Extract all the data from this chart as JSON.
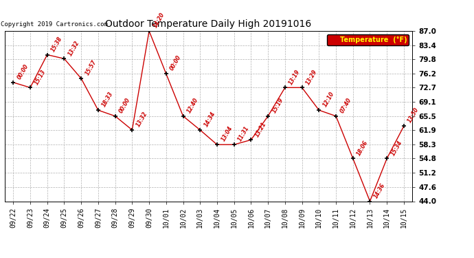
{
  "title": "Outdoor Temperature Daily High 20191016",
  "copyright": "Copyright 2019 Cartronics.com",
  "legend_label": "Temperature  (°F)",
  "dates": [
    "09/22",
    "09/23",
    "09/24",
    "09/25",
    "09/26",
    "09/27",
    "09/28",
    "09/29",
    "09/30",
    "10/01",
    "10/02",
    "10/03",
    "10/04",
    "10/05",
    "10/06",
    "10/07",
    "10/08",
    "10/09",
    "10/10",
    "10/11",
    "10/12",
    "10/13",
    "10/14",
    "10/15"
  ],
  "temps": [
    74.0,
    72.7,
    81.0,
    80.0,
    75.0,
    67.0,
    65.5,
    62.0,
    87.0,
    76.2,
    65.5,
    62.0,
    58.3,
    58.3,
    59.5,
    65.5,
    72.7,
    72.7,
    67.0,
    65.5,
    54.8,
    44.0,
    54.8,
    63.0
  ],
  "time_labels": [
    "00:00",
    "15:13",
    "15:38",
    "13:32",
    "15:57",
    "18:33",
    "00:00",
    "13:32",
    "14:20",
    "00:00",
    "12:40",
    "14:34",
    "13:04",
    "11:31",
    "13:21",
    "15:19",
    "13:19",
    "13:29",
    "12:10",
    "07:40",
    "18:06",
    "14:36",
    "15:34",
    "13:50"
  ],
  "yticks": [
    44.0,
    47.6,
    51.2,
    54.8,
    58.3,
    61.9,
    65.5,
    69.1,
    72.7,
    76.2,
    79.8,
    83.4,
    87.0
  ],
  "ylim": [
    44.0,
    87.0
  ],
  "line_color": "#cc0000",
  "marker_color": "#000000",
  "bg_color": "#ffffff",
  "grid_color": "#b0b0b0",
  "title_color": "#000000",
  "label_color": "#cc0000",
  "legend_bg": "#cc0000",
  "legend_text": "#ffff00",
  "annotation_fontsize": 5.5,
  "title_fontsize": 10,
  "tick_fontsize": 7,
  "copyright_fontsize": 6.5
}
